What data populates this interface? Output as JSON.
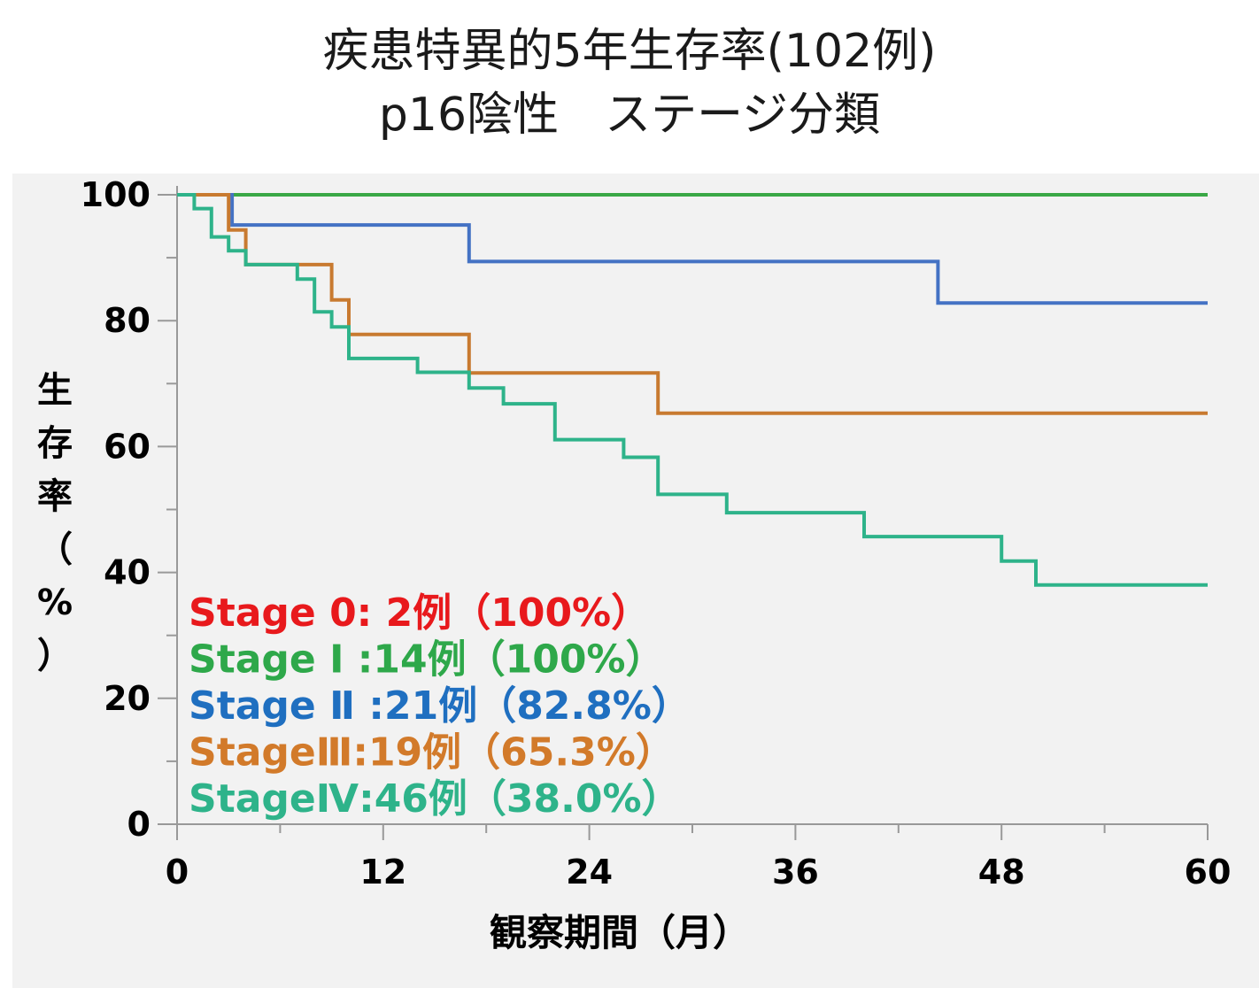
{
  "chart_data": {
    "type": "line",
    "step": true,
    "title": "疾患特異的5年生存率(102例)",
    "subtitle": "p16陰性　ステージ分類",
    "xlabel": "観察期間（月）",
    "ylabel": "生存率（%）",
    "xlim": [
      0,
      60
    ],
    "ylim": [
      0,
      100
    ],
    "xticks": [
      0,
      12,
      24,
      36,
      48,
      60
    ],
    "yticks": [
      0,
      20,
      40,
      60,
      80,
      100
    ],
    "grid": false,
    "legend_position": "bottom-left",
    "series": [
      {
        "key": "stage1",
        "color": "#3aa846",
        "legend_color": "#2ea84a",
        "points": [
          [
            0,
            100
          ],
          [
            60,
            100
          ]
        ]
      },
      {
        "key": "stage2",
        "color": "#4472c4",
        "legend_color": "#1f6fc0",
        "points": [
          [
            0,
            100
          ],
          [
            1,
            100
          ],
          [
            3.2,
            100
          ],
          [
            3.2,
            95.2
          ],
          [
            17,
            95.2
          ],
          [
            17,
            89.4
          ],
          [
            44.3,
            89.4
          ],
          [
            44.3,
            82.8
          ],
          [
            60,
            82.8
          ]
        ]
      },
      {
        "key": "stage3",
        "color": "#c87a30",
        "legend_color": "#d27a2a",
        "points": [
          [
            0,
            100
          ],
          [
            3,
            100
          ],
          [
            3,
            94.4
          ],
          [
            4,
            94.4
          ],
          [
            4,
            88.9
          ],
          [
            9,
            88.9
          ],
          [
            9,
            83.3
          ],
          [
            10,
            83.3
          ],
          [
            10,
            77.8
          ],
          [
            17,
            77.8
          ],
          [
            17,
            71.7
          ],
          [
            28,
            71.7
          ],
          [
            28,
            65.3
          ],
          [
            60,
            65.3
          ]
        ]
      },
      {
        "key": "stage4",
        "color": "#2eb38a",
        "legend_color": "#2eb38a",
        "points": [
          [
            0,
            100
          ],
          [
            1,
            100
          ],
          [
            1,
            97.8
          ],
          [
            2,
            97.8
          ],
          [
            2,
            93.3
          ],
          [
            3,
            93.3
          ],
          [
            3,
            91.1
          ],
          [
            4,
            91.1
          ],
          [
            4,
            88.9
          ],
          [
            7,
            88.9
          ],
          [
            7,
            86.6
          ],
          [
            8,
            86.6
          ],
          [
            8,
            81.4
          ],
          [
            9,
            81.4
          ],
          [
            9,
            79.0
          ],
          [
            10,
            79.0
          ],
          [
            10,
            74.0
          ],
          [
            14,
            74.0
          ],
          [
            14,
            71.8
          ],
          [
            17,
            71.8
          ],
          [
            17,
            69.3
          ],
          [
            19,
            69.3
          ],
          [
            19,
            66.8
          ],
          [
            22,
            66.8
          ],
          [
            22,
            61.1
          ],
          [
            26,
            61.1
          ],
          [
            26,
            58.3
          ],
          [
            28,
            58.3
          ],
          [
            28,
            52.4
          ],
          [
            32,
            52.4
          ],
          [
            32,
            49.5
          ],
          [
            40,
            49.5
          ],
          [
            40,
            45.7
          ],
          [
            48,
            45.7
          ],
          [
            48,
            41.8
          ],
          [
            50,
            41.8
          ],
          [
            50,
            38.0
          ],
          [
            60,
            38.0
          ]
        ]
      }
    ],
    "legend": [
      {
        "text": "Stage 0:  2例（100%）",
        "color": "#e8191c"
      },
      {
        "text": "Stage Ⅰ :14例（100%）",
        "color": "#2ea84a"
      },
      {
        "text": "Stage Ⅱ :21例（82.8%）",
        "color": "#1f6fc0"
      },
      {
        "text": "StageⅢ:19例（65.3%）",
        "color": "#d27a2a"
      },
      {
        "text": "StageⅣ:46例（38.0%）",
        "color": "#2eb38a"
      }
    ]
  }
}
